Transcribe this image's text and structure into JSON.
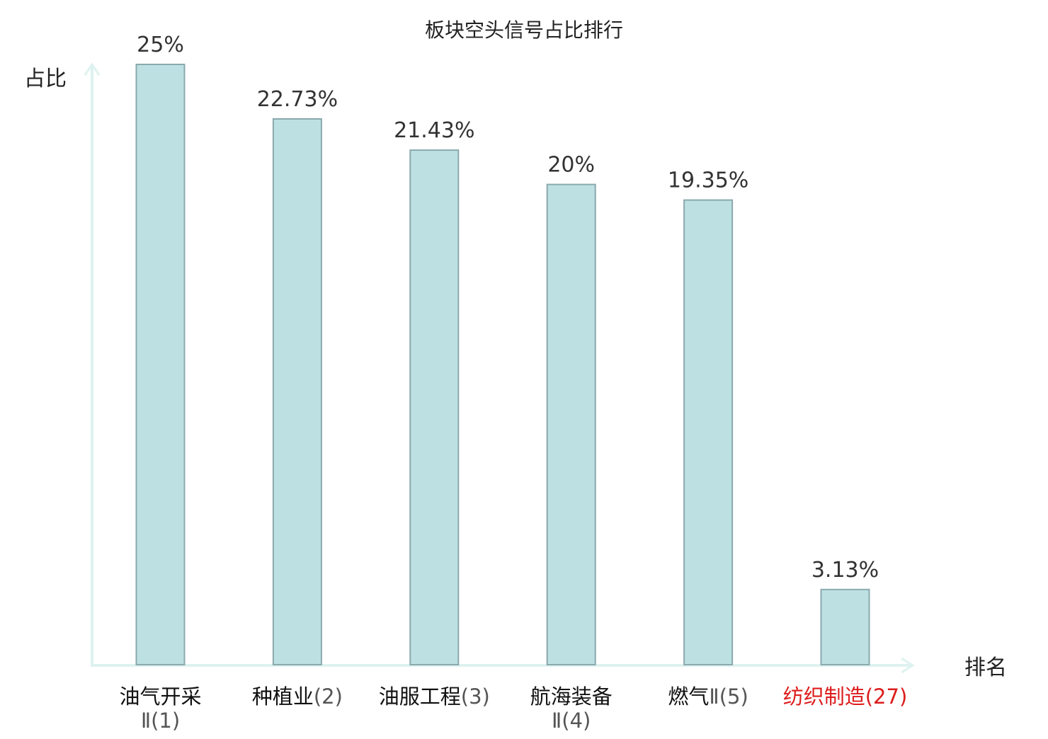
{
  "chart_data": {
    "type": "bar",
    "title": "板块空头信号占比排行",
    "ylabel": "占比",
    "xlabel": "排名",
    "ylim": [
      0,
      25
    ],
    "grid": false,
    "categories": [
      {
        "lines": [
          {
            "name": "油气开采",
            "rank": ""
          },
          {
            "name": "",
            "rank": "Ⅱ(1)"
          }
        ],
        "highlight": false
      },
      {
        "lines": [
          {
            "name": "种植业",
            "rank": "(2)"
          }
        ],
        "highlight": false
      },
      {
        "lines": [
          {
            "name": "油服工程",
            "rank": "(3)"
          }
        ],
        "highlight": false
      },
      {
        "lines": [
          {
            "name": "航海装备",
            "rank": ""
          },
          {
            "name": "",
            "rank": "Ⅱ(4)"
          }
        ],
        "highlight": false
      },
      {
        "lines": [
          {
            "name": "燃气",
            "rank": "Ⅱ(5)"
          }
        ],
        "highlight": false
      },
      {
        "lines": [
          {
            "name": "纺织制造",
            "rank": "(27)"
          }
        ],
        "highlight": true
      }
    ],
    "values": [
      25,
      22.73,
      21.43,
      20,
      19.35,
      3.13
    ],
    "value_labels": [
      "25%",
      "22.73%",
      "21.43%",
      "20%",
      "19.35%",
      "3.13%"
    ],
    "colors": {
      "bar_fill": "#bde1e3",
      "bar_stroke": "#8aa9ad",
      "axis": "#def2ef",
      "text": "#222222",
      "value_text": "#333333",
      "rank_text": "#555555",
      "highlight": "#dd1c1c"
    }
  }
}
